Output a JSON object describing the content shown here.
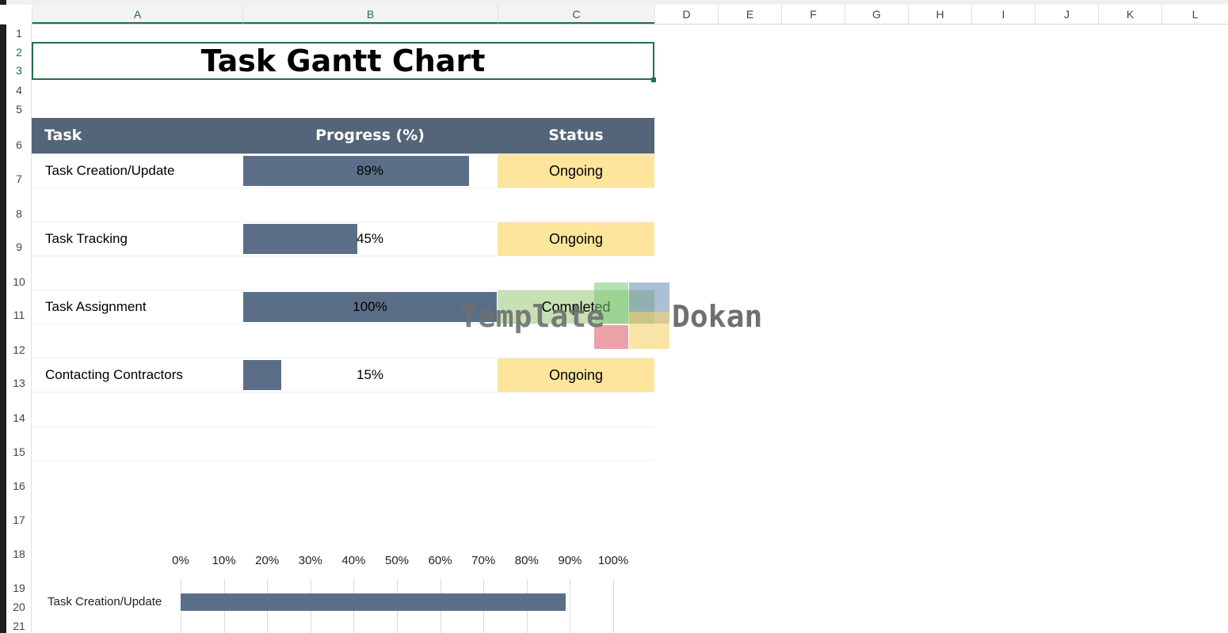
{
  "sheet": {
    "columns": [
      "A",
      "B",
      "C",
      "D",
      "E",
      "F",
      "G",
      "H",
      "I",
      "J",
      "K",
      "L"
    ],
    "rows": [
      "1",
      "2",
      "3",
      "4",
      "5",
      "6",
      "7",
      "8",
      "9",
      "10",
      "11",
      "12",
      "13",
      "14",
      "15",
      "16",
      "17",
      "18",
      "19",
      "20",
      "21"
    ]
  },
  "title": "Task Gantt Chart",
  "table": {
    "headers": {
      "task": "Task",
      "progress": "Progress (%)",
      "status": "Status"
    },
    "rows": [
      {
        "task": "Task Creation/Update",
        "progress": 0.89,
        "progress_label": "89%",
        "status": "Ongoing"
      },
      {
        "task": "Task Tracking",
        "progress": 0.45,
        "progress_label": "45%",
        "status": "Ongoing"
      },
      {
        "task": "Task Assignment",
        "progress": 1.0,
        "progress_label": "100%",
        "status": "Completed"
      },
      {
        "task": "Contacting Contractors",
        "progress": 0.15,
        "progress_label": "15%",
        "status": "Ongoing"
      }
    ]
  },
  "watermark": {
    "left": "Template",
    "right": "Dokan"
  },
  "colors": {
    "header_bg": "#546479",
    "bar": "#5a6f87",
    "ongoing": "#fde59c",
    "completed": "#c7e0b4",
    "accent": "#217346"
  },
  "chart_data": {
    "type": "bar",
    "orientation": "horizontal",
    "categories": [
      "Task Creation/Update"
    ],
    "values": [
      89
    ],
    "x_ticks": [
      "0%",
      "10%",
      "20%",
      "30%",
      "40%",
      "50%",
      "60%",
      "70%",
      "80%",
      "90%",
      "100%"
    ],
    "xlim": [
      0,
      100
    ],
    "grid": true
  }
}
